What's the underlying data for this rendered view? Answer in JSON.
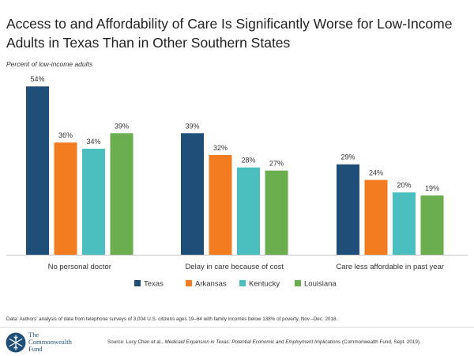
{
  "title": "Access to and Affordability of Care Is Significantly Worse for Low-Income Adults in Texas Than in Other Southern States",
  "subtitle": "Percent of low-income adults",
  "chart_data": {
    "type": "bar",
    "categories": [
      "No personal doctor",
      "Delay in care because of cost",
      "Care less affordable in past year"
    ],
    "series": [
      {
        "name": "Texas",
        "color": "#1f4e79",
        "values": [
          54,
          39,
          29
        ]
      },
      {
        "name": "Arkansas",
        "color": "#f47c20",
        "values": [
          36,
          32,
          24
        ]
      },
      {
        "name": "Kentucky",
        "color": "#4bbfbf",
        "values": [
          34,
          28,
          20
        ]
      },
      {
        "name": "Louisiana",
        "color": "#6aae4f",
        "values": [
          39,
          27,
          19
        ]
      }
    ],
    "value_suffix": "%",
    "ylim": [
      0,
      60
    ],
    "grid": false,
    "legend_position": "bottom"
  },
  "footer": {
    "note": "Data: Authors’ analysis of data from telephone surveys of 3,004 U.S. citizens ages 19–64 with family incomes below 138% of poverty, Nov.–Dec. 2018.",
    "source_prefix": "Source: Lucy Chen et al., ",
    "source_title": "Medicaid Expansion in Texas: Potential Economic and Employment Implications",
    "source_suffix": " (Commonwealth Fund, Sept. 2019).",
    "logo_line1": "The",
    "logo_line2": "Commonwealth",
    "logo_line3": "Fund"
  }
}
